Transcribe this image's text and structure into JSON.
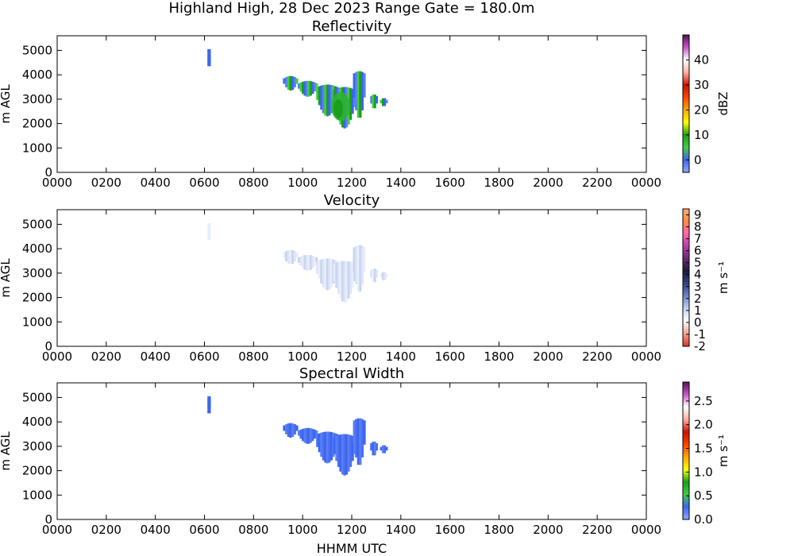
{
  "figure": {
    "suptitle": "Highland High, 28 Dec 2023 Range Gate = 180.0m",
    "xlabel": "HHMM UTC"
  },
  "chart_data": [
    {
      "type": "heatmap",
      "title": "Reflectivity",
      "ylabel": "m AGL",
      "xticks": [
        "0000",
        "0200",
        "0400",
        "0600",
        "0800",
        "1000",
        "1200",
        "1400",
        "1600",
        "1800",
        "2000",
        "2200",
        "0000"
      ],
      "yticks": [
        "0",
        "1000",
        "2000",
        "3000",
        "4000",
        "5000"
      ],
      "ylim": [
        0,
        5600
      ],
      "colorbar": {
        "label": "dBZ",
        "ticks": [
          "0",
          "10",
          "20",
          "30",
          "40"
        ],
        "range": [
          -5,
          50
        ],
        "stops": [
          "#8fa8ff",
          "#3a66f0",
          "#44cc44",
          "#1b9e1b",
          "#ffff00",
          "#ffaa00",
          "#ff4400",
          "#cc1100",
          "#ffb0a0",
          "#ffffff",
          "#cc55cc",
          "#551155"
        ]
      }
    },
    {
      "type": "heatmap",
      "title": "Velocity",
      "ylabel": "m AGL",
      "xticks": [
        "0000",
        "0200",
        "0400",
        "0600",
        "0800",
        "1000",
        "1200",
        "1400",
        "1600",
        "1800",
        "2000",
        "2200",
        "0000"
      ],
      "yticks": [
        "0",
        "1000",
        "2000",
        "3000",
        "4000",
        "5000"
      ],
      "ylim": [
        0,
        5600
      ],
      "colorbar": {
        "label": "m s⁻¹",
        "ticks": [
          "-2",
          "-1",
          "0",
          "1",
          "2",
          "3",
          "4",
          "5",
          "6",
          "7",
          "8",
          "9"
        ],
        "range": [
          -2,
          9.5
        ],
        "stops": [
          "#dd3322",
          "#f0a090",
          "#ffffff",
          "#c8d4f0",
          "#6e86cc",
          "#334488",
          "#1a1a3a",
          "#6a2a6a",
          "#b040b0",
          "#ff66aa",
          "#ff8844",
          "#ffaa77"
        ]
      }
    },
    {
      "type": "heatmap",
      "title": "Spectral Width",
      "ylabel": "m AGL",
      "xticks": [
        "0000",
        "0200",
        "0400",
        "0600",
        "0800",
        "1000",
        "1200",
        "1400",
        "1600",
        "1800",
        "2000",
        "2200",
        "0000"
      ],
      "yticks": [
        "0",
        "1000",
        "2000",
        "3000",
        "4000",
        "5000"
      ],
      "ylim": [
        0,
        5600
      ],
      "colorbar": {
        "label": "m s⁻¹",
        "ticks": [
          "0.0",
          "0.5",
          "1.0",
          "1.5",
          "2.0",
          "2.5"
        ],
        "range": [
          0,
          2.9
        ],
        "stops": [
          "#8fa8ff",
          "#3a66f0",
          "#44cc44",
          "#1b9e1b",
          "#ffff00",
          "#ffaa00",
          "#ff4400",
          "#cc1100",
          "#ffb0a0",
          "#ffffff",
          "#cc55cc",
          "#551155"
        ]
      }
    }
  ]
}
